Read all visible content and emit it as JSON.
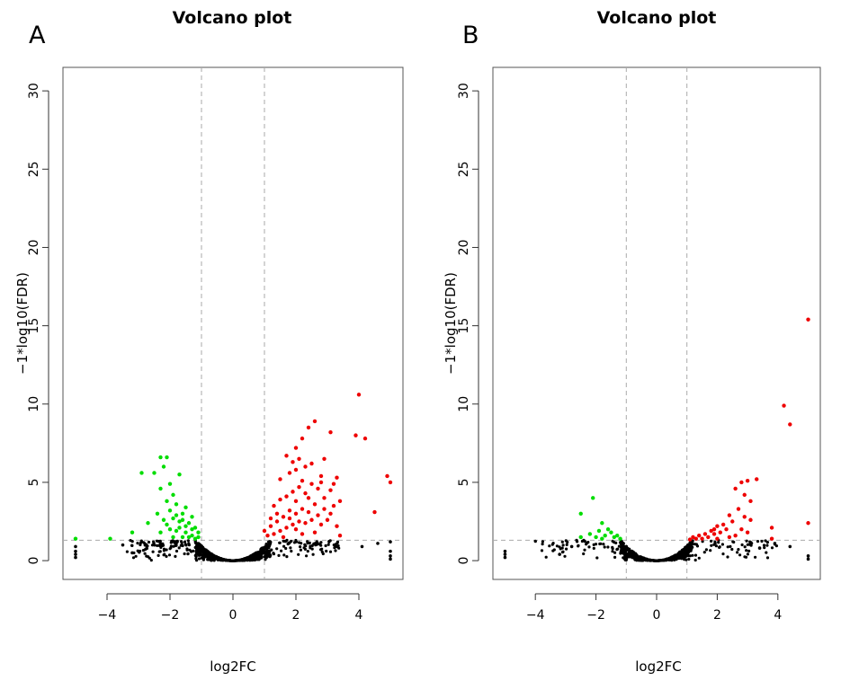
{
  "chart_data": [
    {
      "type": "scatter",
      "panel_label": "A",
      "title": "Volcano plot",
      "xlabel": "log2FC",
      "ylabel": "−1*log10(FDR)",
      "xlim": [
        -5.4,
        5.4
      ],
      "ylim": [
        -1.2,
        31.5
      ],
      "xticks": [
        -4,
        -2,
        0,
        2,
        4
      ],
      "yticks": [
        0,
        5,
        10,
        15,
        20,
        25,
        30
      ],
      "fc_cutoffs": [
        -1,
        1
      ],
      "fdr_cutoff": 1.3,
      "colors": {
        "down": "#00dd00",
        "up": "#ee0000",
        "ns": "#000000"
      },
      "up_points": [
        [
          4.0,
          10.6
        ],
        [
          4.2,
          7.8
        ],
        [
          3.9,
          8.0
        ],
        [
          3.1,
          8.2
        ],
        [
          2.6,
          8.9
        ],
        [
          2.4,
          8.5
        ],
        [
          2.2,
          7.8
        ],
        [
          2.0,
          7.2
        ],
        [
          1.7,
          6.7
        ],
        [
          2.9,
          6.5
        ],
        [
          3.3,
          5.3
        ],
        [
          2.8,
          5.4
        ],
        [
          2.5,
          6.2
        ],
        [
          2.3,
          6.0
        ],
        [
          2.0,
          5.8
        ],
        [
          1.8,
          5.6
        ],
        [
          1.5,
          5.2
        ],
        [
          3.1,
          4.5
        ],
        [
          3.4,
          3.8
        ],
        [
          3.2,
          3.5
        ],
        [
          2.9,
          4.0
        ],
        [
          2.7,
          4.6
        ],
        [
          2.5,
          4.9
        ],
        [
          2.3,
          4.3
        ],
        [
          2.1,
          4.7
        ],
        [
          1.9,
          4.4
        ],
        [
          1.7,
          4.1
        ],
        [
          1.5,
          3.9
        ],
        [
          1.3,
          3.5
        ],
        [
          3.0,
          2.6
        ],
        [
          3.3,
          2.2
        ],
        [
          2.7,
          2.9
        ],
        [
          2.4,
          3.1
        ],
        [
          2.2,
          3.3
        ],
        [
          2.0,
          3.0
        ],
        [
          1.8,
          3.2
        ],
        [
          1.6,
          2.8
        ],
        [
          1.4,
          2.5
        ],
        [
          1.2,
          2.2
        ],
        [
          1.0,
          1.9
        ],
        [
          1.1,
          1.6
        ],
        [
          1.3,
          1.7
        ],
        [
          1.5,
          1.9
        ],
        [
          1.7,
          2.1
        ],
        [
          1.9,
          2.3
        ],
        [
          2.1,
          2.5
        ],
        [
          2.3,
          2.4
        ],
        [
          2.5,
          2.6
        ],
        [
          2.8,
          2.3
        ],
        [
          3.4,
          1.6
        ],
        [
          2.6,
          1.8
        ],
        [
          2.2,
          1.7
        ],
        [
          1.6,
          1.5
        ],
        [
          4.5,
          3.1
        ],
        [
          4.9,
          5.4
        ],
        [
          5.0,
          5.0
        ],
        [
          2.0,
          3.8
        ],
        [
          2.4,
          4.0
        ],
        [
          2.6,
          3.6
        ],
        [
          1.8,
          2.7
        ],
        [
          2.9,
          3.3
        ],
        [
          3.1,
          3.0
        ],
        [
          1.4,
          3.0
        ],
        [
          2.2,
          5.1
        ],
        [
          2.8,
          5.0
        ],
        [
          1.9,
          6.3
        ],
        [
          2.1,
          6.5
        ],
        [
          3.2,
          4.9
        ],
        [
          2.0,
          2.0
        ],
        [
          1.2,
          2.7
        ]
      ],
      "down_points": [
        [
          -2.1,
          6.6
        ],
        [
          -2.3,
          6.6
        ],
        [
          -2.9,
          5.6
        ],
        [
          -2.5,
          5.6
        ],
        [
          -2.2,
          6.0
        ],
        [
          -1.7,
          5.5
        ],
        [
          -2.3,
          4.6
        ],
        [
          -2.0,
          4.9
        ],
        [
          -1.9,
          4.2
        ],
        [
          -2.1,
          3.8
        ],
        [
          -1.8,
          3.6
        ],
        [
          -1.5,
          3.4
        ],
        [
          -2.4,
          3.0
        ],
        [
          -2.0,
          3.2
        ],
        [
          -1.6,
          3.0
        ],
        [
          -1.3,
          2.8
        ],
        [
          -2.7,
          2.4
        ],
        [
          -2.2,
          2.6
        ],
        [
          -1.9,
          2.7
        ],
        [
          -1.7,
          2.5
        ],
        [
          -1.4,
          2.4
        ],
        [
          -1.2,
          2.1
        ],
        [
          -1.1,
          1.8
        ],
        [
          -1.3,
          1.6
        ],
        [
          -1.5,
          1.8
        ],
        [
          -1.8,
          1.9
        ],
        [
          -2.0,
          2.0
        ],
        [
          -2.3,
          1.8
        ],
        [
          -1.6,
          1.5
        ],
        [
          -1.4,
          1.5
        ],
        [
          -1.2,
          1.4
        ],
        [
          -3.2,
          1.8
        ],
        [
          -3.9,
          1.4
        ],
        [
          -5.0,
          1.4
        ],
        [
          -1.9,
          1.5
        ],
        [
          -1.7,
          2.1
        ],
        [
          -1.5,
          2.2
        ],
        [
          -1.3,
          2.0
        ],
        [
          -1.1,
          1.5
        ],
        [
          -2.1,
          2.3
        ],
        [
          -1.8,
          2.9
        ],
        [
          -1.6,
          2.6
        ]
      ]
    },
    {
      "type": "scatter",
      "panel_label": "B",
      "title": "Volcano plot",
      "xlabel": "log2FC",
      "ylabel": "−1*log10(FDR)",
      "xlim": [
        -5.4,
        5.4
      ],
      "ylim": [
        -1.2,
        31.5
      ],
      "xticks": [
        -4,
        -2,
        0,
        2,
        4
      ],
      "yticks": [
        0,
        5,
        10,
        15,
        20,
        25,
        30
      ],
      "fc_cutoffs": [
        -1,
        1
      ],
      "fdr_cutoff": 1.3,
      "colors": {
        "down": "#00dd00",
        "up": "#ee0000",
        "ns": "#000000"
      },
      "up_points": [
        [
          5.0,
          15.4
        ],
        [
          4.2,
          9.9
        ],
        [
          4.4,
          8.7
        ],
        [
          5.0,
          2.4
        ],
        [
          3.8,
          2.1
        ],
        [
          3.8,
          1.4
        ],
        [
          3.3,
          5.2
        ],
        [
          3.0,
          5.1
        ],
        [
          2.8,
          5.0
        ],
        [
          2.6,
          4.6
        ],
        [
          2.9,
          4.2
        ],
        [
          3.1,
          3.8
        ],
        [
          2.7,
          3.3
        ],
        [
          2.9,
          2.8
        ],
        [
          3.1,
          2.6
        ],
        [
          2.4,
          2.9
        ],
        [
          2.5,
          2.5
        ],
        [
          2.2,
          2.3
        ],
        [
          2.0,
          2.2
        ],
        [
          2.3,
          2.0
        ],
        [
          1.8,
          1.9
        ],
        [
          2.1,
          1.8
        ],
        [
          1.6,
          1.7
        ],
        [
          1.9,
          1.7
        ],
        [
          1.4,
          1.6
        ],
        [
          1.2,
          1.5
        ],
        [
          1.5,
          1.4
        ],
        [
          1.7,
          1.5
        ],
        [
          2.0,
          1.4
        ],
        [
          2.6,
          1.6
        ],
        [
          1.3,
          1.4
        ],
        [
          1.1,
          1.35
        ],
        [
          2.4,
          1.5
        ],
        [
          2.8,
          2.0
        ],
        [
          3.0,
          1.8
        ],
        [
          1.9,
          2.0
        ]
      ],
      "down_points": [
        [
          -2.1,
          4.0
        ],
        [
          -2.5,
          3.0
        ],
        [
          -1.8,
          2.4
        ],
        [
          -1.6,
          2.0
        ],
        [
          -1.9,
          1.9
        ],
        [
          -2.2,
          1.7
        ],
        [
          -1.7,
          1.6
        ],
        [
          -1.4,
          1.5
        ],
        [
          -1.2,
          1.4
        ],
        [
          -2.5,
          1.5
        ],
        [
          -1.5,
          1.8
        ],
        [
          -1.3,
          1.6
        ],
        [
          -2.0,
          1.5
        ],
        [
          -1.8,
          1.4
        ]
      ]
    }
  ]
}
